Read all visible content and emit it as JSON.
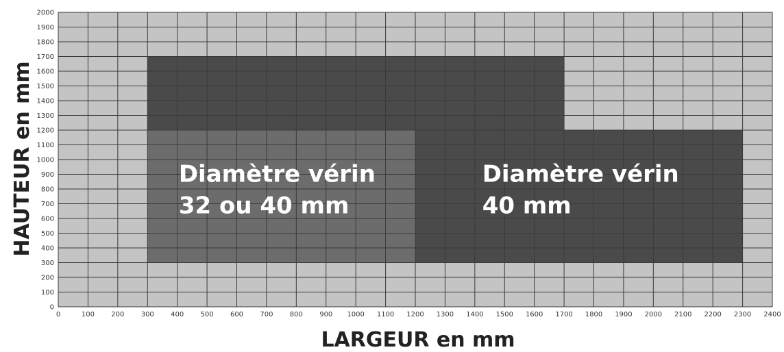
{
  "chart_data": {
    "type": "area",
    "xlabel": "LARGEUR en mm",
    "ylabel": "HAUTEUR en mm",
    "xlim": [
      0,
      2400
    ],
    "ylim": [
      0,
      2000
    ],
    "x_ticks": [
      0,
      100,
      200,
      300,
      400,
      500,
      600,
      700,
      800,
      900,
      1000,
      1100,
      1200,
      1300,
      1400,
      1500,
      1600,
      1700,
      1800,
      1900,
      2000,
      2100,
      2200,
      2300,
      2400
    ],
    "y_ticks": [
      0,
      100,
      200,
      300,
      400,
      500,
      600,
      700,
      800,
      900,
      1000,
      1100,
      1200,
      1300,
      1400,
      1500,
      1600,
      1700,
      1800,
      1900,
      2000
    ],
    "grid": true,
    "regions": [
      {
        "label_lines": [
          "Diamètre vérin",
          "40 mm"
        ],
        "color": "#4a4a4a",
        "polygon": [
          [
            300,
            300
          ],
          [
            2300,
            300
          ],
          [
            2300,
            1200
          ],
          [
            1700,
            1200
          ],
          [
            1700,
            1700
          ],
          [
            300,
            1700
          ]
        ]
      },
      {
        "label_lines": [
          "Diamètre vérin",
          "32 ou 40 mm"
        ],
        "color": "#6c6c6c",
        "polygon": [
          [
            300,
            300
          ],
          [
            1200,
            300
          ],
          [
            1200,
            1200
          ],
          [
            300,
            1200
          ]
        ]
      }
    ],
    "colors": {
      "background": "#c4c4c4",
      "grid": "#3a3a3a"
    }
  }
}
